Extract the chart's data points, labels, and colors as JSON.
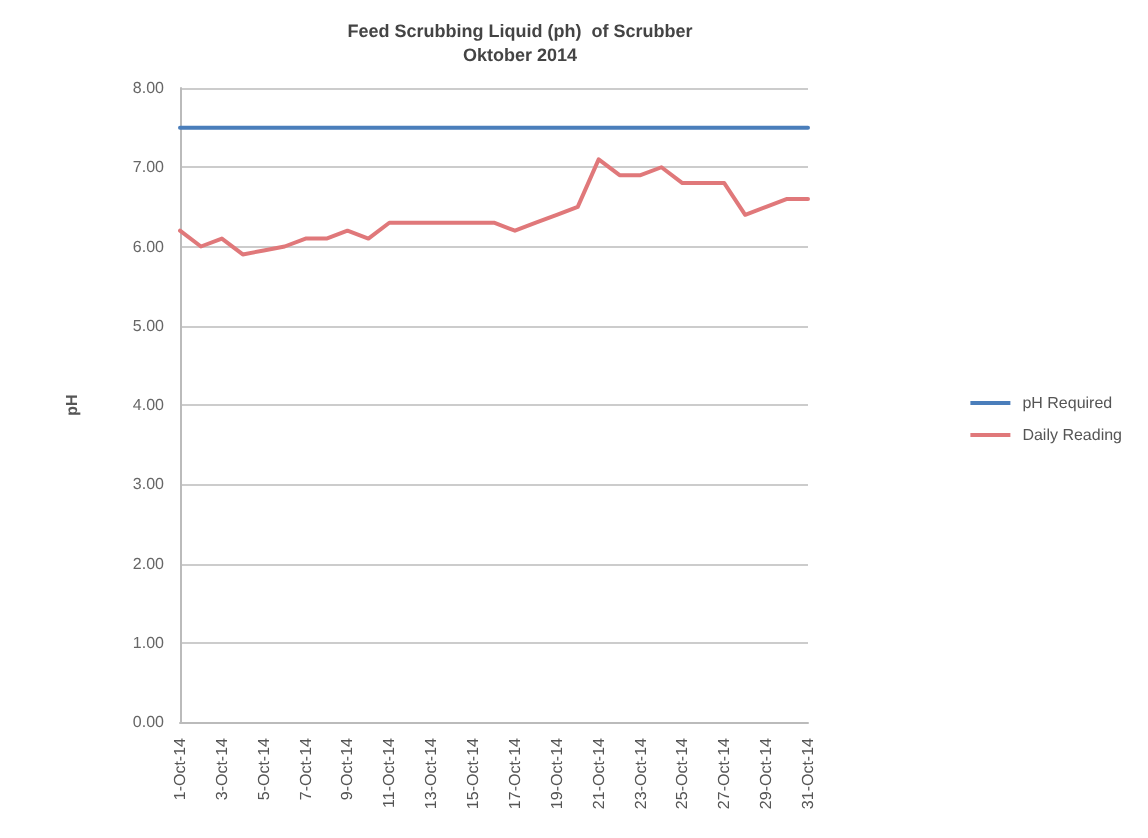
{
  "chart_data": {
    "type": "line",
    "title": "Feed Scrubbing Liquid (ph)  of Scrubber",
    "subtitle": "Oktober 2014",
    "ylabel": "pH",
    "categories": [
      "1-Oct-14",
      null,
      "3-Oct-14",
      null,
      "5-Oct-14",
      null,
      "7-Oct-14",
      null,
      "9-Oct-14",
      null,
      "11-Oct-14",
      null,
      "13-Oct-14",
      null,
      "15-Oct-14",
      null,
      "17-Oct-14",
      null,
      "19-Oct-14",
      null,
      "21-Oct-14",
      null,
      "23-Oct-14",
      null,
      "25-Oct-14",
      null,
      "27-Oct-14",
      null,
      "29-Oct-14",
      null,
      "31-Oct-14"
    ],
    "series": [
      {
        "name": "pH Required",
        "color": "#4a7ebb",
        "values": [
          7.5,
          7.5,
          7.5,
          7.5,
          7.5,
          7.5,
          7.5,
          7.5,
          7.5,
          7.5,
          7.5,
          7.5,
          7.5,
          7.5,
          7.5,
          7.5,
          7.5,
          7.5,
          7.5,
          7.5,
          7.5,
          7.5,
          7.5,
          7.5,
          7.5,
          7.5,
          7.5,
          7.5,
          7.5,
          7.5,
          7.5
        ]
      },
      {
        "name": "Daily Reading",
        "color": "#e0787a",
        "values": [
          6.2,
          6.0,
          6.1,
          5.9,
          5.95,
          6.0,
          6.1,
          6.1,
          6.2,
          6.1,
          6.3,
          6.3,
          6.3,
          6.3,
          6.3,
          6.3,
          6.2,
          6.3,
          6.4,
          6.5,
          7.1,
          6.9,
          6.9,
          7.0,
          6.8,
          6.8,
          6.8,
          6.4,
          6.5,
          6.6,
          6.6
        ]
      }
    ],
    "ylim": [
      0,
      8
    ],
    "yticks": [
      {
        "value": 0,
        "label": "0.00"
      },
      {
        "value": 1,
        "label": "1.00"
      },
      {
        "value": 2,
        "label": "2.00"
      },
      {
        "value": 3,
        "label": "3.00"
      },
      {
        "value": 4,
        "label": "4.00"
      },
      {
        "value": 5,
        "label": "5.00"
      },
      {
        "value": 6,
        "label": "6.00"
      },
      {
        "value": 7,
        "label": "7.00"
      },
      {
        "value": 8,
        "label": "8.00"
      }
    ],
    "grid": "y",
    "legend": "right",
    "marker": "none",
    "line_style": "solid"
  }
}
